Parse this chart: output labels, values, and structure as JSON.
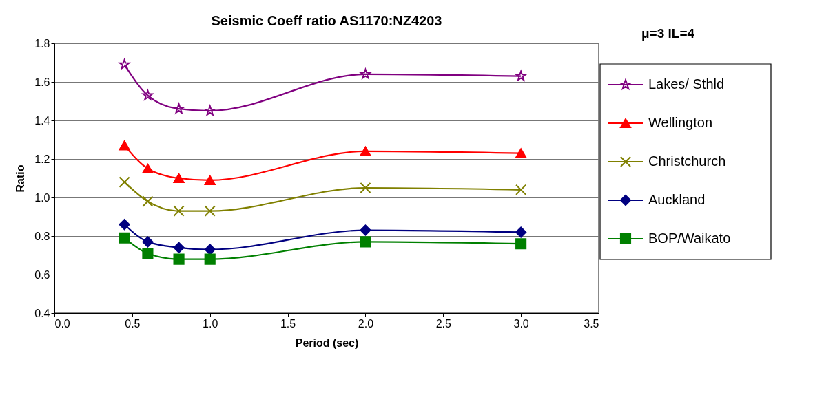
{
  "chart_data": {
    "type": "line",
    "title": "Seismic Coeff ratio  AS1170:NZ4203",
    "xlabel": "Period (sec)",
    "ylabel": "Ratio",
    "annotations": [
      "μ=3  IL=4"
    ],
    "x": [
      0.45,
      0.6,
      0.8,
      1.0,
      2.0,
      3.0
    ],
    "series": [
      {
        "name": "Lakes/ Sthld",
        "color": "#800080",
        "marker": "star",
        "values": [
          1.69,
          1.53,
          1.46,
          1.45,
          1.64,
          1.63
        ]
      },
      {
        "name": "Wellington",
        "color": "#ff0000",
        "marker": "triangle",
        "values": [
          1.27,
          1.15,
          1.1,
          1.09,
          1.24,
          1.23
        ]
      },
      {
        "name": "Christchurch",
        "color": "#808000",
        "marker": "cross",
        "values": [
          1.08,
          0.98,
          0.93,
          0.93,
          1.05,
          1.04
        ]
      },
      {
        "name": "Auckland",
        "color": "#000080",
        "marker": "diamond",
        "values": [
          0.86,
          0.77,
          0.74,
          0.73,
          0.83,
          0.82
        ]
      },
      {
        "name": "BOP/Waikato",
        "color": "#008000",
        "marker": "square",
        "values": [
          0.79,
          0.71,
          0.68,
          0.68,
          0.77,
          0.76
        ]
      }
    ],
    "xlim": [
      0,
      3.5
    ],
    "xticks": [
      {
        "value": 0,
        "label": "0.0"
      },
      {
        "value": 0.5,
        "label": "0.5"
      },
      {
        "value": 1,
        "label": "1.0"
      },
      {
        "value": 1.5,
        "label": "1.5"
      },
      {
        "value": 2,
        "label": "2.0"
      },
      {
        "value": 2.5,
        "label": "2.5"
      },
      {
        "value": 3,
        "label": "3.0"
      },
      {
        "value": 3.5,
        "label": "3.5"
      }
    ],
    "ylim": [
      0.4,
      1.8
    ],
    "yticks": [
      {
        "value": 0.4,
        "label": "0.4"
      },
      {
        "value": 0.6,
        "label": "0.6"
      },
      {
        "value": 0.8,
        "label": "0.8"
      },
      {
        "value": 1,
        "label": "1.0"
      },
      {
        "value": 1.2,
        "label": "1.2"
      },
      {
        "value": 1.4,
        "label": "1.4"
      },
      {
        "value": 1.6,
        "label": "1.6"
      },
      {
        "value": 1.8,
        "label": "1.8"
      }
    ],
    "grid": "y",
    "legend": "right",
    "line_style": "solid"
  }
}
